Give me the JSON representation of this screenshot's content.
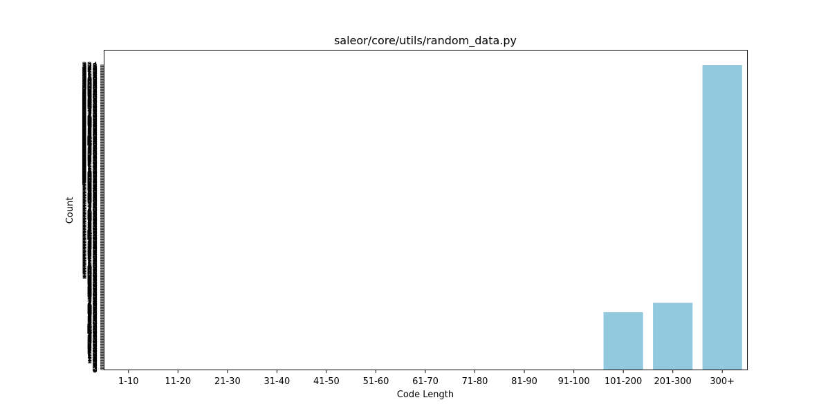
{
  "chart_data": {
    "type": "bar",
    "title": "saleor/core/utils/random_data.py",
    "xlabel": "Code Length",
    "ylabel": "Count",
    "categories": [
      "1-10",
      "11-20",
      "21-30",
      "31-40",
      "41-50",
      "51-60",
      "61-70",
      "71-80",
      "81-90",
      "91-100",
      "101-200",
      "201-300",
      "300+"
    ],
    "values": [
      0,
      0,
      0,
      0,
      0,
      0,
      0,
      0,
      0,
      0,
      61,
      71,
      324
    ],
    "ylim": [
      0,
      324
    ],
    "bar_color": "#92c9df",
    "grid": false,
    "legend": "none"
  }
}
